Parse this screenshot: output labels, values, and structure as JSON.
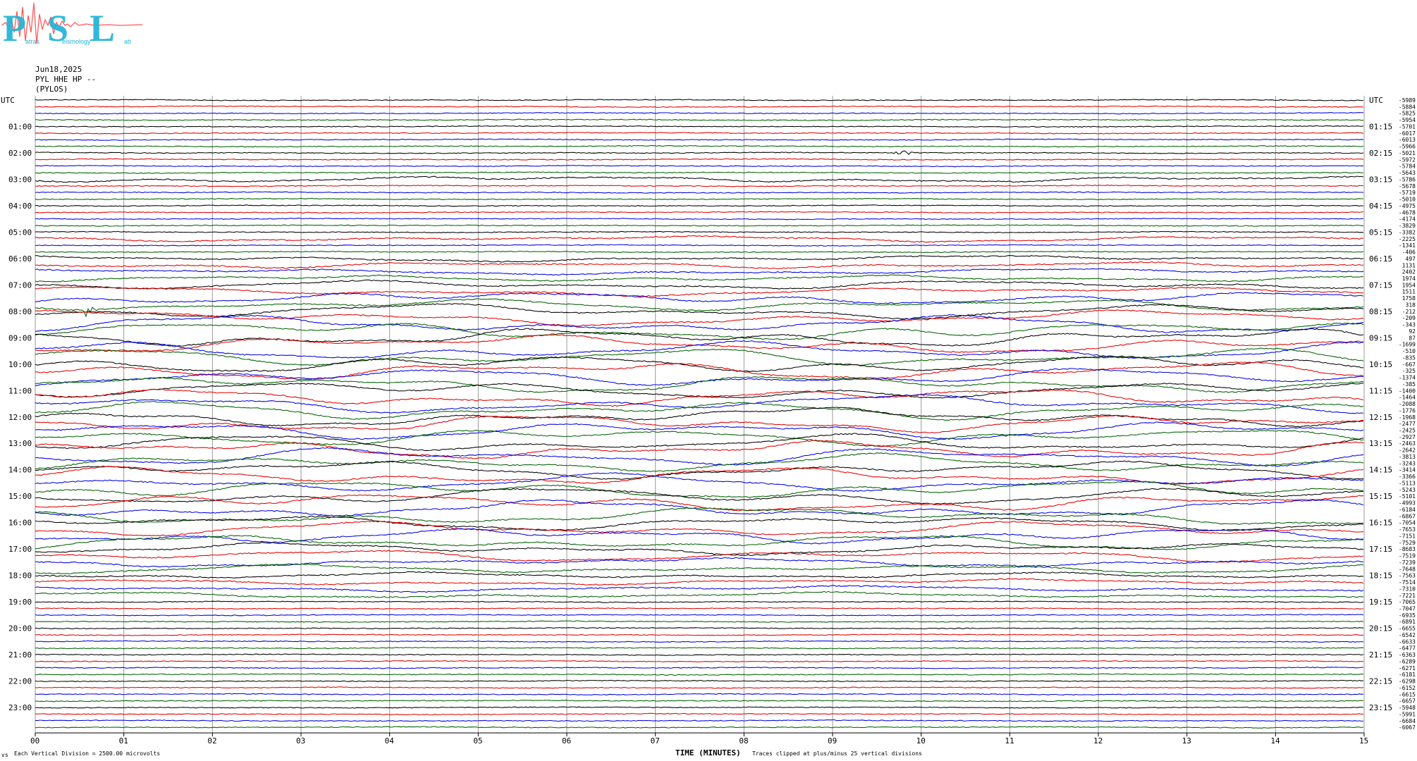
{
  "logo": {
    "text": "PSL",
    "small_1": "atras",
    "small_2": "eismology",
    "small_3": "ab"
  },
  "header": {
    "date": "Jun18,2025",
    "channel": "PYL HHE HP --",
    "station": "(PYLOS)"
  },
  "colors": {
    "trace_cycle": [
      "#000000",
      "#e00000",
      "#0000e0",
      "#006000"
    ],
    "grid": "#9a9a9a",
    "logo_red": "#ff5a5a",
    "logo_cyan": "#21b4d6"
  },
  "chart_data": {
    "type": "line",
    "title": "",
    "xlabel": "TIME (MINUTES)",
    "ylabel": "UTC",
    "xlim": [
      0,
      15
    ],
    "x_ticks": [
      "00",
      "01",
      "02",
      "03",
      "04",
      "05",
      "06",
      "07",
      "08",
      "09",
      "10",
      "11",
      "12",
      "13",
      "14",
      "15"
    ],
    "left_hour_labels": [
      "UTC",
      "01:00",
      "02:00",
      "03:00",
      "04:00",
      "05:00",
      "06:00",
      "07:00",
      "08:00",
      "09:00",
      "10:00",
      "11:00",
      "12:00",
      "13:00",
      "14:00",
      "15:00",
      "16:00",
      "17:00",
      "18:00",
      "19:00",
      "20:00",
      "21:00",
      "22:00",
      "23:00"
    ],
    "right_hour_labels": [
      "UTC",
      "01:15",
      "02:15",
      "03:15",
      "04:15",
      "05:15",
      "06:15",
      "07:15",
      "08:15",
      "09:15",
      "10:15",
      "11:15",
      "12:15",
      "13:15",
      "14:15",
      "15:15",
      "16:15",
      "17:15",
      "18:15",
      "19:15",
      "20:15",
      "21:15",
      "22:15",
      "23:15"
    ],
    "trace_count": 96,
    "trace_activity": [
      1,
      1,
      1,
      1,
      1,
      1,
      1,
      1,
      1,
      1,
      1,
      1,
      2,
      1,
      1,
      1,
      1,
      1,
      1,
      1,
      1,
      2,
      1,
      1,
      2,
      2,
      2,
      2,
      3,
      3,
      4,
      4,
      5,
      5,
      6,
      6,
      6,
      6,
      6,
      6,
      6,
      6,
      6,
      6,
      6,
      6,
      6,
      6,
      6,
      6,
      6,
      6,
      6,
      6,
      6,
      6,
      6,
      6,
      6,
      6,
      6,
      6,
      6,
      6,
      5,
      5,
      5,
      5,
      4,
      4,
      3,
      3,
      2,
      2,
      2,
      2,
      1,
      1,
      1,
      1,
      1,
      1,
      1,
      1,
      1,
      1,
      1,
      1,
      1,
      1,
      1,
      1,
      1,
      1,
      1,
      1
    ],
    "offsets_right": [
      "-5989",
      "-5884",
      "-5825",
      "-5954",
      "-5701",
      "-6017",
      "-6013",
      "-5966",
      "-5021",
      "-5972",
      "-5784",
      "-5643",
      "-5786",
      "-5678",
      "-5719",
      "-5010",
      "-4975",
      "-4678",
      "-4174",
      "-3829",
      "-3382",
      "-2225",
      "-1341",
      "-406",
      "497",
      "1131",
      "2402",
      "1974",
      "1954",
      "1511",
      "1758",
      "318",
      "-212",
      "-209",
      "-343",
      "92",
      "87",
      "-1699",
      "-510",
      "-835",
      "-667",
      "-325",
      "-1374",
      "-385",
      "-1400",
      "-1464",
      "-2088",
      "-1776",
      "-1968",
      "-2477",
      "-2425",
      "-2927",
      "-2463",
      "-2642",
      "-3813",
      "-3243",
      "-3414",
      "-3366",
      "-5113",
      "-5243",
      "-5101",
      "-4993",
      "-6184",
      "-6867",
      "-7054",
      "-7653",
      "-7151",
      "-7529",
      "-8683",
      "-7519",
      "-7239",
      "-7648",
      "-7563",
      "-7514",
      "-7310",
      "-7221",
      "-7065",
      "-7047",
      "-6935",
      "-6891",
      "-6655",
      "-6542",
      "-6633",
      "-6477",
      "-6363",
      "-6289",
      "-6271",
      "-6181",
      "-6298",
      "-6152",
      "-6615",
      "-6657",
      "-5948",
      "-5991",
      "-6684",
      "-6067"
    ],
    "events": [
      {
        "trace": 31,
        "minute": 0.56,
        "type": "local-event"
      },
      {
        "trace": 8,
        "minute": 9.8,
        "type": "burst"
      }
    ],
    "footer_left": "Each Vertical Division = 2500.00 microvolts",
    "footer_right": "Traces clipped at plus/minus 25 vertical divisions",
    "corner_mark": "vs"
  }
}
